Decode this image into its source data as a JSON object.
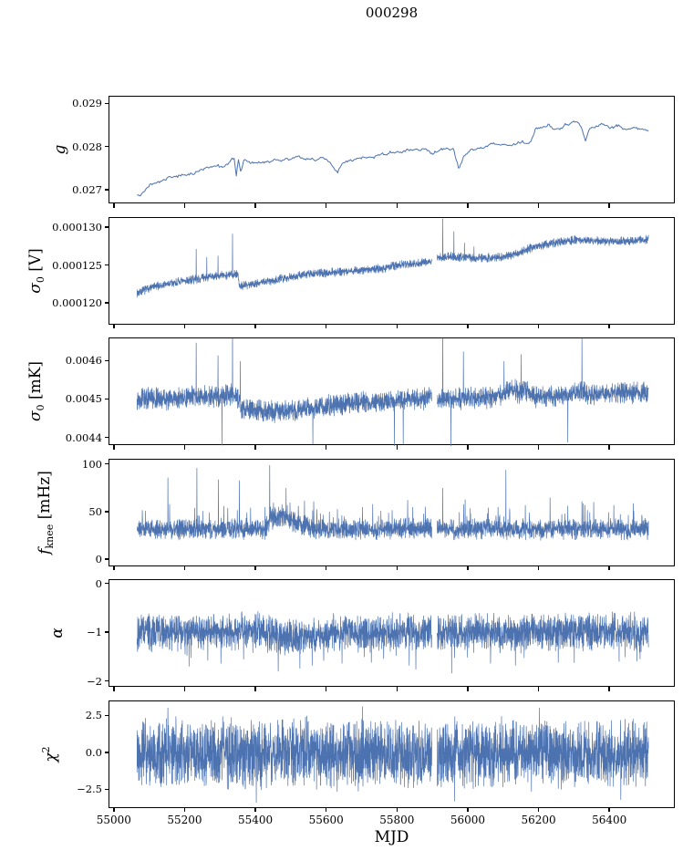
{
  "title": "000298",
  "chart_data": {
    "type": "line",
    "title": "000298",
    "xlabel": "MJD",
    "line_color": "#4c72b0",
    "axis_color": "#000000",
    "background": "#ffffff",
    "xlim": [
      54985,
      56585
    ],
    "x_data_range": [
      55063,
      56508
    ],
    "x_ticks": [
      {
        "v": 55000,
        "label": "55000"
      },
      {
        "v": 55200,
        "label": "55200"
      },
      {
        "v": 55400,
        "label": "55400"
      },
      {
        "v": 55600,
        "label": "55600"
      },
      {
        "v": 55800,
        "label": "55800"
      },
      {
        "v": 56000,
        "label": "56000"
      },
      {
        "v": 56200,
        "label": "56200"
      },
      {
        "v": 56400,
        "label": "56400"
      }
    ],
    "subplots": [
      {
        "id": "g",
        "ylabel_parts": [
          {
            "t": "g",
            "i": true
          }
        ],
        "yticks": [
          {
            "v": 0.027,
            "label": "0.027"
          },
          {
            "v": 0.028,
            "label": "0.028"
          },
          {
            "v": 0.029,
            "label": "0.029"
          }
        ],
        "ylim": [
          0.02668,
          0.02918
        ],
        "n_points": 480,
        "noise": 2.5e-05,
        "walk": 6e-05,
        "stroke": 1.0,
        "gaps": [],
        "spikes": [],
        "trend": [
          [
            55063,
            0.0269
          ],
          [
            55075,
            0.02692
          ],
          [
            55085,
            0.027
          ],
          [
            55100,
            0.02712
          ],
          [
            55120,
            0.02715
          ],
          [
            55140,
            0.02722
          ],
          [
            55165,
            0.02728
          ],
          [
            55185,
            0.02735
          ],
          [
            55210,
            0.0274
          ],
          [
            55240,
            0.02748
          ],
          [
            55265,
            0.02752
          ],
          [
            55290,
            0.02755
          ],
          [
            55310,
            0.02752
          ],
          [
            55325,
            0.02762
          ],
          [
            55338,
            0.0277
          ],
          [
            55343,
            0.02728
          ],
          [
            55349,
            0.02772
          ],
          [
            55356,
            0.02746
          ],
          [
            55365,
            0.02768
          ],
          [
            55385,
            0.02763
          ],
          [
            55410,
            0.02768
          ],
          [
            55440,
            0.02774
          ],
          [
            55475,
            0.02771
          ],
          [
            55510,
            0.02776
          ],
          [
            55545,
            0.02772
          ],
          [
            55580,
            0.02776
          ],
          [
            55610,
            0.02766
          ],
          [
            55630,
            0.02742
          ],
          [
            55645,
            0.02768
          ],
          [
            55675,
            0.02774
          ],
          [
            55705,
            0.02778
          ],
          [
            55730,
            0.02775
          ],
          [
            55755,
            0.02784
          ],
          [
            55780,
            0.02789
          ],
          [
            55805,
            0.02785
          ],
          [
            55830,
            0.0279
          ],
          [
            55855,
            0.02796
          ],
          [
            55880,
            0.028
          ],
          [
            55900,
            0.02791
          ],
          [
            55920,
            0.02796
          ],
          [
            55940,
            0.028
          ],
          [
            55958,
            0.02794
          ],
          [
            55972,
            0.02752
          ],
          [
            55985,
            0.0278
          ],
          [
            56005,
            0.02795
          ],
          [
            56035,
            0.028
          ],
          [
            56065,
            0.02806
          ],
          [
            56095,
            0.0281
          ],
          [
            56120,
            0.02805
          ],
          [
            56150,
            0.0281
          ],
          [
            56175,
            0.02812
          ],
          [
            56188,
            0.0284
          ],
          [
            56205,
            0.02846
          ],
          [
            56225,
            0.02852
          ],
          [
            56245,
            0.02846
          ],
          [
            56265,
            0.02852
          ],
          [
            56285,
            0.02856
          ],
          [
            56305,
            0.0286
          ],
          [
            56318,
            0.02845
          ],
          [
            56330,
            0.02812
          ],
          [
            56342,
            0.02842
          ],
          [
            56360,
            0.02848
          ],
          [
            56380,
            0.02852
          ],
          [
            56400,
            0.02842
          ],
          [
            56420,
            0.02846
          ],
          [
            56440,
            0.0284
          ],
          [
            56465,
            0.02846
          ],
          [
            56485,
            0.0284
          ],
          [
            56508,
            0.02836
          ]
        ]
      },
      {
        "id": "sigma0-v",
        "ylabel_parts": [
          {
            "t": "σ",
            "i": true
          },
          {
            "t": "0",
            "sub": true
          },
          {
            "t": " [V]"
          }
        ],
        "yticks": [
          {
            "v": 0.00012,
            "label": "0.000120"
          },
          {
            "v": 0.000125,
            "label": "0.000125"
          },
          {
            "v": 0.00013,
            "label": "0.000130"
          }
        ],
        "ylim": [
          0.0001172,
          0.0001314
        ],
        "n_points": 3000,
        "noise": 6.5e-07,
        "stroke": 0.7,
        "gaps": [
          [
            55896,
            55911
          ]
        ],
        "spikes": [
          [
            55230,
            0.0001273
          ],
          [
            55260,
            0.0001262
          ],
          [
            55292,
            0.0001264
          ],
          [
            55333,
            0.0001293
          ],
          [
            55927,
            0.0001313
          ],
          [
            55958,
            0.0001296
          ],
          [
            55988,
            0.0001281
          ],
          [
            56015,
            0.0001276
          ]
        ],
        "trend": [
          [
            55063,
            0.0001215
          ],
          [
            55100,
            0.0001222
          ],
          [
            55150,
            0.0001227
          ],
          [
            55200,
            0.0001231
          ],
          [
            55250,
            0.0001235
          ],
          [
            55300,
            0.0001238
          ],
          [
            55340,
            0.000124
          ],
          [
            55348,
            0.0001241
          ],
          [
            55352,
            0.0001224
          ],
          [
            55400,
            0.0001228
          ],
          [
            55450,
            0.0001232
          ],
          [
            55500,
            0.0001237
          ],
          [
            55550,
            0.000124
          ],
          [
            55600,
            0.0001242
          ],
          [
            55650,
            0.0001244
          ],
          [
            55700,
            0.0001245
          ],
          [
            55750,
            0.0001247
          ],
          [
            55800,
            0.0001252
          ],
          [
            55850,
            0.0001254
          ],
          [
            55893,
            0.0001256
          ],
          [
            55912,
            0.0001262
          ],
          [
            55950,
            0.0001263
          ],
          [
            56000,
            0.0001262
          ],
          [
            56050,
            0.0001261
          ],
          [
            56100,
            0.0001263
          ],
          [
            56130,
            0.0001266
          ],
          [
            56160,
            0.0001272
          ],
          [
            56200,
            0.0001278
          ],
          [
            56250,
            0.0001282
          ],
          [
            56300,
            0.0001285
          ],
          [
            56350,
            0.0001284
          ],
          [
            56400,
            0.0001283
          ],
          [
            56450,
            0.0001284
          ],
          [
            56508,
            0.0001286
          ]
        ]
      },
      {
        "id": "sigma0-mk",
        "ylabel_parts": [
          {
            "t": "σ",
            "i": true
          },
          {
            "t": "0",
            "sub": true
          },
          {
            "t": " [mK]"
          }
        ],
        "yticks": [
          {
            "v": 0.0044,
            "label": "0.0044"
          },
          {
            "v": 0.0045,
            "label": "0.0045"
          },
          {
            "v": 0.0046,
            "label": "0.0046"
          }
        ],
        "ylim": [
          0.00438,
          0.00466
        ],
        "n_points": 3000,
        "noise": 3.2e-05,
        "stroke": 0.7,
        "gaps": [
          [
            55896,
            55911
          ]
        ],
        "spikes": [
          [
            55230,
            0.004648
          ],
          [
            55292,
            0.004615
          ],
          [
            55333,
            0.00469
          ],
          [
            55355,
            0.0046
          ],
          [
            55927,
            0.00469
          ],
          [
            55985,
            0.004625
          ],
          [
            56100,
            0.0046
          ],
          [
            56148,
            0.004618
          ],
          [
            56320,
            0.00466
          ],
          [
            55560,
            0.004385
          ],
          [
            55790,
            0.004375
          ],
          [
            55815,
            0.004385
          ],
          [
            55950,
            0.004378
          ],
          [
            56280,
            0.00439
          ],
          [
            55303,
            0.004382
          ]
        ],
        "trend": [
          [
            55063,
            0.004505
          ],
          [
            55150,
            0.004502
          ],
          [
            55230,
            0.004508
          ],
          [
            55300,
            0.00451
          ],
          [
            55345,
            0.004515
          ],
          [
            55358,
            0.004478
          ],
          [
            55420,
            0.004472
          ],
          [
            55500,
            0.00447
          ],
          [
            55560,
            0.004478
          ],
          [
            55620,
            0.004488
          ],
          [
            55700,
            0.004495
          ],
          [
            55760,
            0.004495
          ],
          [
            55800,
            0.004498
          ],
          [
            55850,
            0.004502
          ],
          [
            55893,
            0.004505
          ],
          [
            55912,
            0.004505
          ],
          [
            55960,
            0.004502
          ],
          [
            56000,
            0.004505
          ],
          [
            56060,
            0.004508
          ],
          [
            56100,
            0.004515
          ],
          [
            56130,
            0.004528
          ],
          [
            56145,
            0.004515
          ],
          [
            56160,
            0.00453
          ],
          [
            56175,
            0.004512
          ],
          [
            56200,
            0.004508
          ],
          [
            56250,
            0.004512
          ],
          [
            56300,
            0.004515
          ],
          [
            56320,
            0.00452
          ],
          [
            56340,
            0.004512
          ],
          [
            56380,
            0.004515
          ],
          [
            56420,
            0.004518
          ],
          [
            56460,
            0.00452
          ],
          [
            56508,
            0.004522
          ]
        ]
      },
      {
        "id": "fknee",
        "ylabel_parts": [
          {
            "t": "f",
            "i": true
          },
          {
            "t": "knee",
            "sub": true
          },
          {
            "t": " [mHz]"
          }
        ],
        "yticks": [
          {
            "v": 0,
            "label": "0"
          },
          {
            "v": 50,
            "label": "50"
          },
          {
            "v": 100,
            "label": "100"
          }
        ],
        "ylim": [
          -7,
          106
        ],
        "n_points": 3000,
        "noise": 12,
        "burst": {
          "prob": 0.05,
          "amp": 22
        },
        "stroke": 0.7,
        "gaps": [
          [
            55896,
            55911
          ]
        ],
        "spikes": [
          [
            55150,
            87
          ],
          [
            55232,
            97
          ],
          [
            55293,
            85
          ],
          [
            55352,
            84
          ],
          [
            55438,
            100
          ],
          [
            55484,
            76
          ],
          [
            55562,
            62
          ],
          [
            55700,
            56
          ],
          [
            55752,
            52
          ],
          [
            55842,
            56
          ],
          [
            55927,
            76
          ],
          [
            55990,
            64
          ],
          [
            56105,
            95
          ],
          [
            56160,
            58
          ],
          [
            56230,
            66
          ],
          [
            56320,
            62
          ],
          [
            56410,
            58
          ],
          [
            56465,
            60
          ]
        ],
        "trend": [
          [
            55063,
            33
          ],
          [
            55425,
            33
          ],
          [
            55442,
            44
          ],
          [
            55468,
            46
          ],
          [
            55495,
            42
          ],
          [
            55525,
            38
          ],
          [
            55558,
            34
          ],
          [
            55595,
            33
          ],
          [
            56508,
            33
          ]
        ]
      },
      {
        "id": "alpha",
        "ylabel_parts": [
          {
            "t": "α",
            "i": true
          }
        ],
        "yticks": [
          {
            "v": -2,
            "label": "−2"
          },
          {
            "v": -1,
            "label": "−1"
          },
          {
            "v": 0,
            "label": "0"
          }
        ],
        "ylim": [
          -2.12,
          0.09
        ],
        "n_points": 3000,
        "noise": 0.42,
        "burst": {
          "prob": 0.04,
          "amp": -0.45
        },
        "stroke": 0.7,
        "gaps": [
          [
            55896,
            55911
          ]
        ],
        "spikes": [
          [
            55210,
            -1.68
          ],
          [
            55300,
            -1.62
          ],
          [
            55462,
            -1.78
          ],
          [
            55523,
            -1.72
          ],
          [
            55558,
            -1.66
          ],
          [
            55642,
            -1.62
          ],
          [
            55725,
            -1.6
          ],
          [
            55832,
            -1.66
          ],
          [
            55952,
            -1.82
          ],
          [
            56062,
            -1.62
          ],
          [
            56132,
            -1.66
          ],
          [
            56253,
            -1.6
          ],
          [
            56425,
            -1.58
          ]
        ],
        "trend": [
          [
            55063,
            -0.97
          ],
          [
            55420,
            -0.97
          ],
          [
            55465,
            -1.06
          ],
          [
            55560,
            -1.07
          ],
          [
            55610,
            -1.0
          ],
          [
            55900,
            -0.98
          ],
          [
            56508,
            -0.97
          ]
        ]
      },
      {
        "id": "chi2",
        "ylabel_parts": [
          {
            "t": "χ",
            "i": true
          },
          {
            "t": "2",
            "sup": true
          }
        ],
        "yticks": [
          {
            "v": -2.5,
            "label": "−2.5"
          },
          {
            "v": 0,
            "label": "0.0"
          },
          {
            "v": 2.5,
            "label": "2.5"
          }
        ],
        "ylim": [
          -3.74,
          3.55
        ],
        "n_points": 3200,
        "noise": 2.6,
        "stroke": 0.7,
        "gaps": [
          [
            55896,
            55911
          ]
        ],
        "spikes": [
          [
            55150,
            3.1
          ],
          [
            55400,
            -3.3
          ],
          [
            55700,
            3.2
          ],
          [
            55960,
            -3.2
          ],
          [
            56200,
            3.1
          ],
          [
            56430,
            -3.1
          ]
        ],
        "trend": [
          [
            55063,
            0
          ],
          [
            56508,
            0
          ]
        ]
      }
    ]
  }
}
